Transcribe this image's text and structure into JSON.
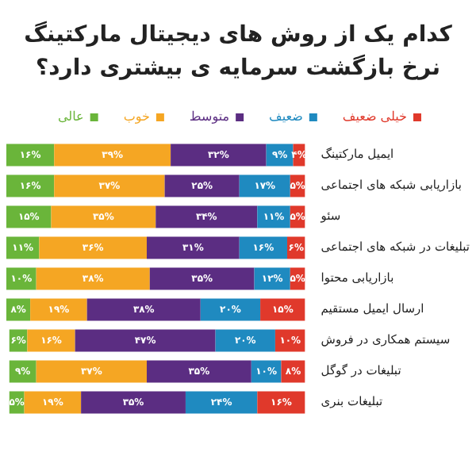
{
  "chart_data": {
    "type": "bar",
    "orientation": "horizontal",
    "stacked": true,
    "title": "کدام یک از روش های دیجیتال مارکتینگ نرخ بازگشت سرمایه ی بیشتری دارد؟",
    "categories": [
      "ایمیل مارکتینگ",
      "بازاریابی شبکه های اجتماعی",
      "سئو",
      "تبلیغات در شبکه های اجتماعی",
      "بازاریابی محتوا",
      "ارسال ایمیل مستقیم",
      "سیستم همکاری در فروش",
      "تبلیغات در گوگل",
      "تبلیغات بنری"
    ],
    "series": [
      {
        "name": "خیلی ضعیف",
        "color": "#e0392b",
        "values": [
          4,
          5,
          5,
          6,
          5,
          15,
          10,
          8,
          16
        ],
        "value_labels": [
          "۴%",
          "۵%",
          "۵%",
          "۶%",
          "۵%",
          "۱۵%",
          "۱۰%",
          "۸%",
          "۱۶%"
        ]
      },
      {
        "name": "ضعیف",
        "color": "#1f8ac0",
        "values": [
          9,
          17,
          11,
          16,
          12,
          20,
          20,
          10,
          24
        ],
        "value_labels": [
          "۹%",
          "۱۷%",
          "۱۱%",
          "۱۶%",
          "۱۲%",
          "۲۰%",
          "۲۰%",
          "۱۰%",
          "۲۴%"
        ]
      },
      {
        "name": "متوسط",
        "color": "#5b2d82",
        "values": [
          32,
          25,
          34,
          31,
          35,
          38,
          47,
          35,
          35
        ],
        "value_labels": [
          "۳۲%",
          "۲۵%",
          "۳۴%",
          "۳۱%",
          "۳۵%",
          "۳۸%",
          "۴۷%",
          "۳۵%",
          "۳۵%"
        ]
      },
      {
        "name": "خوب",
        "color": "#f5a623",
        "values": [
          39,
          37,
          35,
          36,
          38,
          19,
          16,
          37,
          19
        ],
        "value_labels": [
          "۳۹%",
          "۳۷%",
          "۳۵%",
          "۳۶%",
          "۳۸%",
          "۱۹%",
          "۱۶%",
          "۳۷%",
          "۱۹%"
        ]
      },
      {
        "name": "عالی",
        "color": "#6ab53a",
        "values": [
          16,
          16,
          15,
          11,
          10,
          8,
          6,
          9,
          5
        ],
        "value_labels": [
          "۱۶%",
          "۱۶%",
          "۱۵%",
          "۱۱%",
          "۱۰%",
          "۸%",
          "۶%",
          "۹%",
          "۵%"
        ]
      }
    ],
    "legend": "top",
    "tick_labels": "y"
  }
}
